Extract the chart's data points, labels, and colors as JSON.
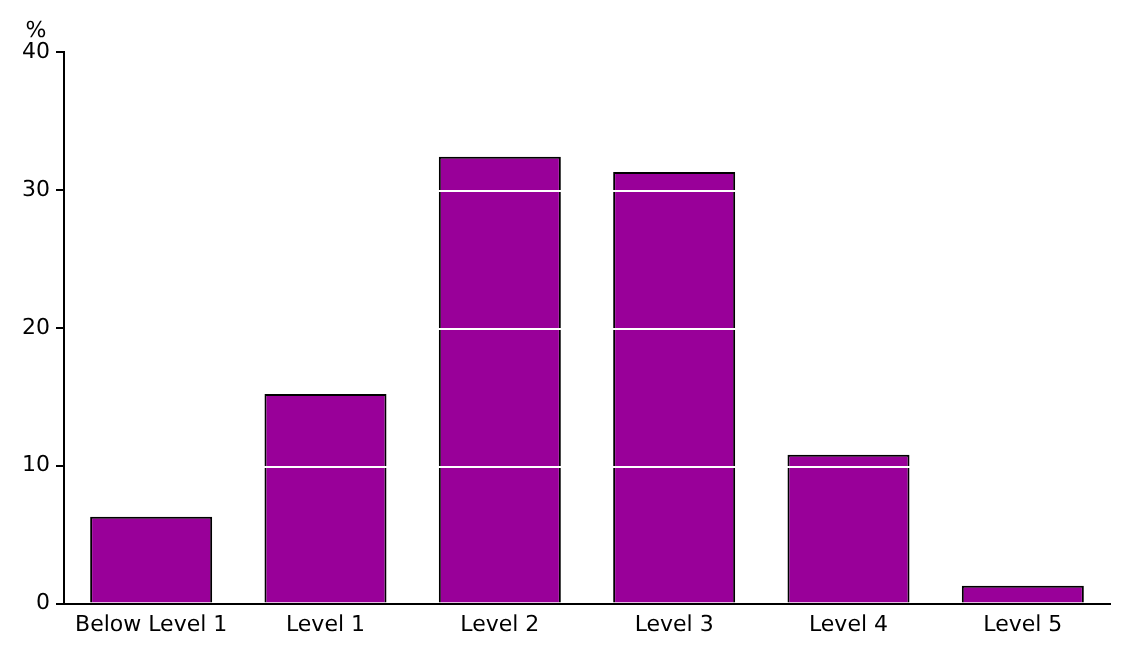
{
  "chart_data": {
    "type": "bar",
    "ylabel": "%",
    "categories": [
      "Below Level 1",
      "Level 1",
      "Level 2",
      "Level 3",
      "Level 4",
      "Level 5"
    ],
    "values": [
      6.3,
      15.2,
      32.4,
      31.3,
      10.8,
      1.3
    ],
    "color": "#990099",
    "ylim": [
      0,
      40
    ],
    "yticks": [
      0,
      10,
      20,
      30,
      40
    ],
    "grid": "y",
    "legend": false
  }
}
